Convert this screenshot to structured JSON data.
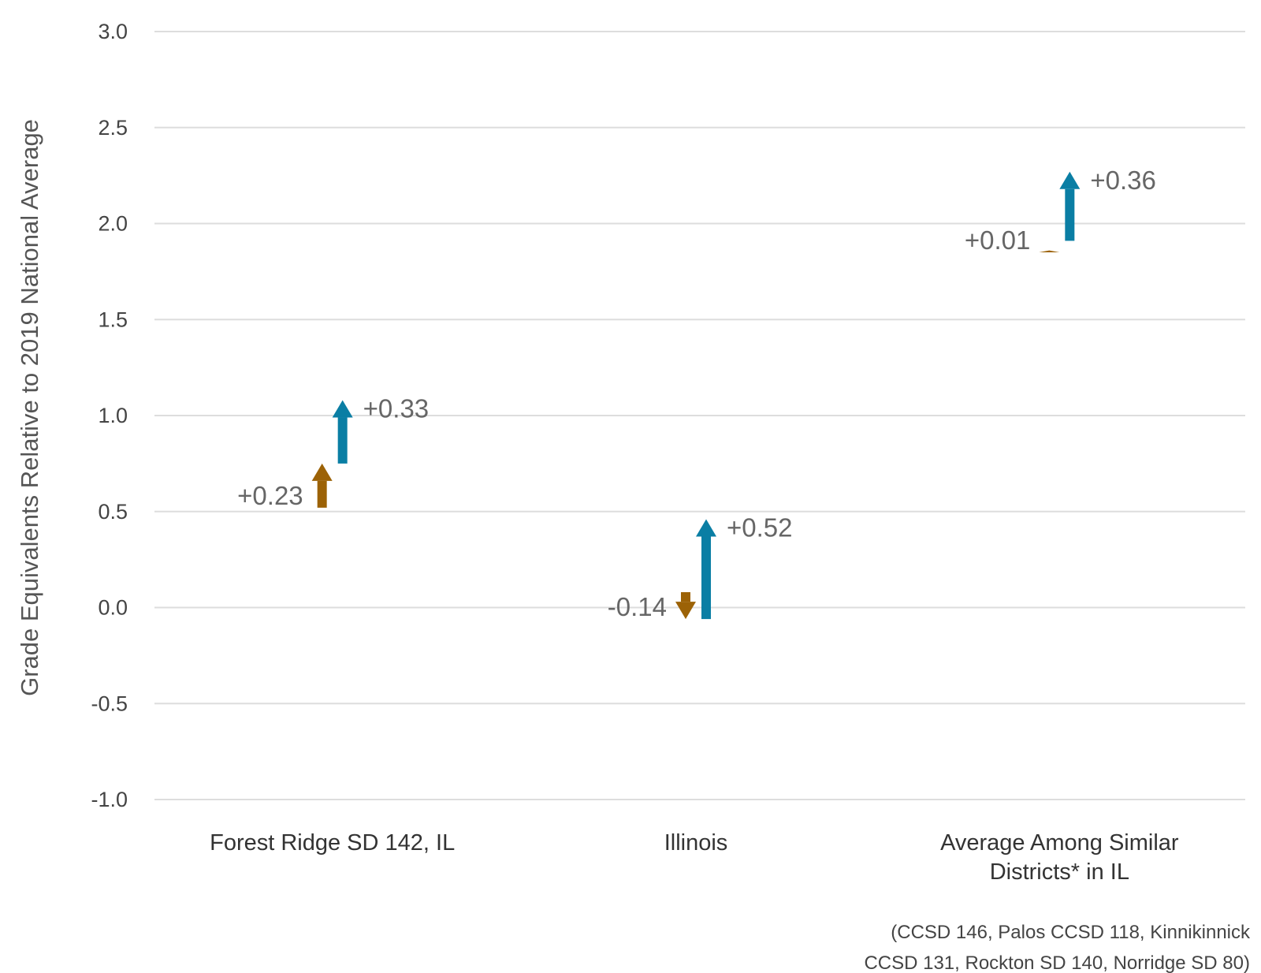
{
  "chart_data": {
    "type": "arrow",
    "ylabel": "Grade Equivalents Relative to 2019 National Average",
    "ylim": [
      -1.0,
      3.0
    ],
    "yticks": [
      -1.0,
      -0.5,
      0.0,
      0.5,
      1.0,
      1.5,
      2.0,
      2.5,
      3.0
    ],
    "ytick_labels": [
      "-1.0",
      "-0.5",
      "0.0",
      "0.5",
      "1.0",
      "1.5",
      "2.0",
      "2.5",
      "3.0"
    ],
    "grid": true,
    "categories": [
      [
        "Forest Ridge SD 142, IL"
      ],
      [
        "Illinois"
      ],
      [
        "Average Among Similar",
        "Districts* in IL"
      ]
    ],
    "series": [
      {
        "color": "#9c6206",
        "arrows": [
          {
            "from": 0.52,
            "to": 0.75,
            "label": "+0.23"
          },
          {
            "from": 0.08,
            "to": -0.06,
            "label": "-0.14"
          },
          {
            "from": 1.85,
            "to": 1.86,
            "label": "+0.01"
          }
        ]
      },
      {
        "color": "#0a7ea4",
        "arrows": [
          {
            "from": 0.75,
            "to": 1.08,
            "label": "+0.33"
          },
          {
            "from": -0.06,
            "to": 0.46,
            "label": "+0.52"
          },
          {
            "from": 1.91,
            "to": 2.27,
            "label": "+0.36"
          }
        ]
      }
    ],
    "footnote": [
      "(CCSD 146, Palos CCSD 118, Kinnikinnick",
      "CCSD 131, Rockton SD 140, Norridge SD 80)"
    ]
  }
}
